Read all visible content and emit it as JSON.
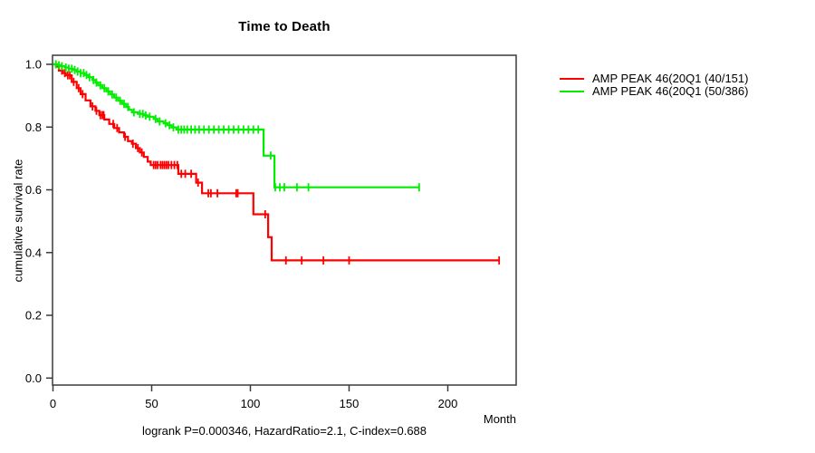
{
  "chart_data": {
    "type": "line",
    "subtype": "kaplan-meier-step",
    "title": "Time to Death",
    "xlabel": "Month",
    "ylabel": "cumulative survival rate",
    "annotation": "logrank P=0.000346, HazardRatio=2.1, C-index=0.688",
    "xlim": [
      0,
      234
    ],
    "ylim": [
      0,
      1
    ],
    "x_ticks": [
      0,
      50,
      100,
      150,
      200
    ],
    "y_ticks": [
      {
        "value": 0.0,
        "label": "0.0"
      },
      {
        "value": 0.2,
        "label": "0.2"
      },
      {
        "value": 0.4,
        "label": "0.4"
      },
      {
        "value": 0.6,
        "label": "0.6"
      },
      {
        "value": 0.8,
        "label": "0.8"
      },
      {
        "value": 1.0,
        "label": "1.0"
      }
    ],
    "grid": false,
    "legend_position": "right-outside",
    "axis_color": "#3a3a3a",
    "series": [
      {
        "name": "AMP PEAK 46(20Q1 (40/151)",
        "color": "#ff0000",
        "end_month": 226,
        "steps": [
          [
            0,
            1.0
          ],
          [
            1.5,
            0.993
          ],
          [
            3,
            0.98
          ],
          [
            5,
            0.972
          ],
          [
            6.5,
            0.965
          ],
          [
            9.5,
            0.944
          ],
          [
            12,
            0.924
          ],
          [
            14,
            0.905
          ],
          [
            16.5,
            0.885
          ],
          [
            19,
            0.866
          ],
          [
            21.5,
            0.852
          ],
          [
            23.5,
            0.838
          ],
          [
            26,
            0.824
          ],
          [
            28.5,
            0.81
          ],
          [
            31,
            0.797
          ],
          [
            33.5,
            0.783
          ],
          [
            36,
            0.769
          ],
          [
            38,
            0.755
          ],
          [
            40,
            0.747
          ],
          [
            42,
            0.733
          ],
          [
            44,
            0.719
          ],
          [
            46,
            0.705
          ],
          [
            48,
            0.69
          ],
          [
            49.5,
            0.679
          ],
          [
            63.5,
            0.651
          ],
          [
            72.5,
            0.623
          ],
          [
            75.5,
            0.589
          ],
          [
            101.5,
            0.522
          ],
          [
            109,
            0.449
          ],
          [
            110.8,
            0.375
          ]
        ],
        "censor_months": [
          4.5,
          6,
          7.5,
          8.5,
          10.5,
          13,
          15,
          20,
          22,
          24,
          25,
          25.7,
          30.5,
          32.5,
          36.5,
          40.5,
          43,
          45,
          51,
          52,
          53,
          54.5,
          55.5,
          56.5,
          57.5,
          58.5,
          60,
          61.5,
          63,
          65,
          67,
          70,
          73.5,
          78.7,
          80,
          83.3,
          92.8,
          93.6,
          107.5,
          118,
          126,
          137,
          150,
          226
        ]
      },
      {
        "name": "AMP PEAK 46(20Q1 (50/386)",
        "color": "#00ee00",
        "end_month": 185.5,
        "steps": [
          [
            0,
            1.0
          ],
          [
            2,
            0.997
          ],
          [
            4,
            0.994
          ],
          [
            6,
            0.99
          ],
          [
            8,
            0.986
          ],
          [
            10,
            0.982
          ],
          [
            12,
            0.977
          ],
          [
            14,
            0.972
          ],
          [
            16,
            0.966
          ],
          [
            18,
            0.959
          ],
          [
            20,
            0.95
          ],
          [
            21.5,
            0.942
          ],
          [
            23,
            0.933
          ],
          [
            25,
            0.924
          ],
          [
            27,
            0.914
          ],
          [
            29,
            0.904
          ],
          [
            31,
            0.894
          ],
          [
            33,
            0.884
          ],
          [
            35,
            0.874
          ],
          [
            37,
            0.864
          ],
          [
            38.5,
            0.855
          ],
          [
            40,
            0.847
          ],
          [
            43,
            0.842
          ],
          [
            46,
            0.837
          ],
          [
            48,
            0.833
          ],
          [
            51,
            0.826
          ],
          [
            53,
            0.818
          ],
          [
            56,
            0.812
          ],
          [
            58,
            0.806
          ],
          [
            60,
            0.799
          ],
          [
            62.5,
            0.792
          ],
          [
            106.7,
            0.709
          ],
          [
            112.2,
            0.608
          ]
        ],
        "censor_months": [
          1.5,
          3,
          4.5,
          6.5,
          8,
          9.5,
          11,
          12.5,
          14,
          15.5,
          17,
          18.5,
          20.5,
          22,
          24,
          26,
          28,
          30,
          32,
          34,
          36,
          38,
          41,
          44,
          45.5,
          47,
          49,
          52,
          54,
          57,
          59,
          61,
          63.5,
          65,
          66.5,
          68,
          70,
          72,
          74,
          76.5,
          79,
          81.5,
          84,
          86.5,
          89,
          91.5,
          94,
          96.5,
          99,
          101.5,
          104,
          110.3,
          112.6,
          114.9,
          117.2,
          123.6,
          129.4,
          185.5
        ]
      }
    ]
  }
}
